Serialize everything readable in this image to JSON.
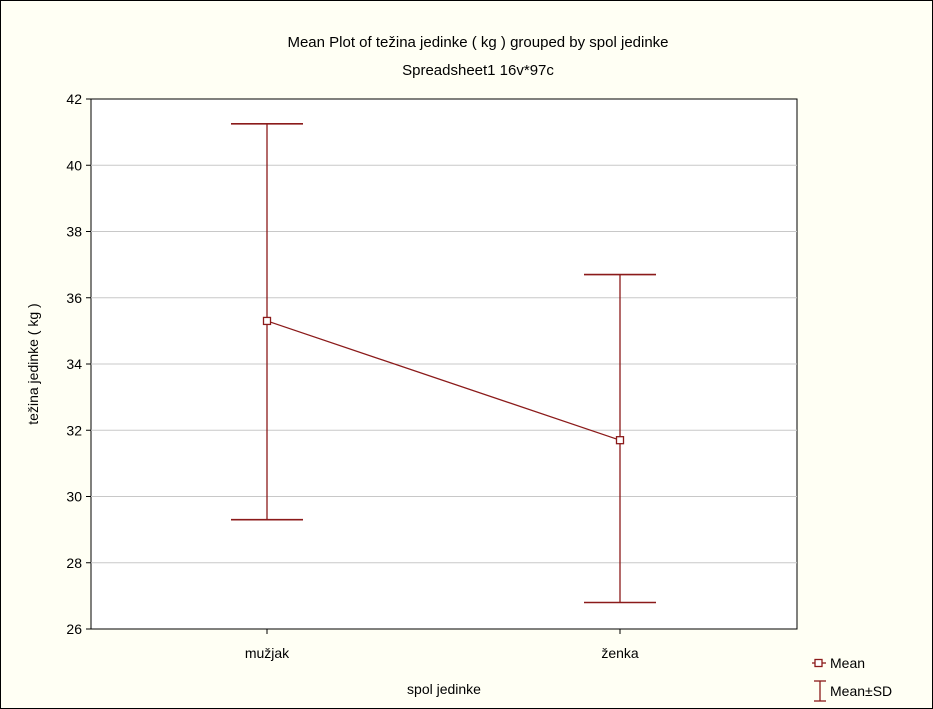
{
  "chart_data": {
    "type": "line",
    "title": "Mean Plot of težina jedinke ( kg ) grouped by  spol jedinke",
    "subtitle": "Spreadsheet1 16v*97c",
    "xlabel": "spol jedinke",
    "ylabel": "težina jedinke ( kg )",
    "categories": [
      "mužjak",
      "ženka"
    ],
    "series": [
      {
        "name": "Mean",
        "values": [
          35.3,
          31.7
        ]
      }
    ],
    "error_bars": {
      "name": "Mean±SD",
      "lower": [
        29.3,
        26.8
      ],
      "upper": [
        41.25,
        36.7
      ]
    },
    "ylim": [
      26,
      42
    ],
    "yticks": [
      "26",
      "28",
      "30",
      "32",
      "34",
      "36",
      "38",
      "40",
      "42"
    ],
    "grid": true,
    "legend": "bottom-right",
    "colors": {
      "series": "#8b1a1a",
      "grid": "#c8c8c8",
      "plot_bg": "#ffffff",
      "page_bg": "#fffff4"
    }
  }
}
